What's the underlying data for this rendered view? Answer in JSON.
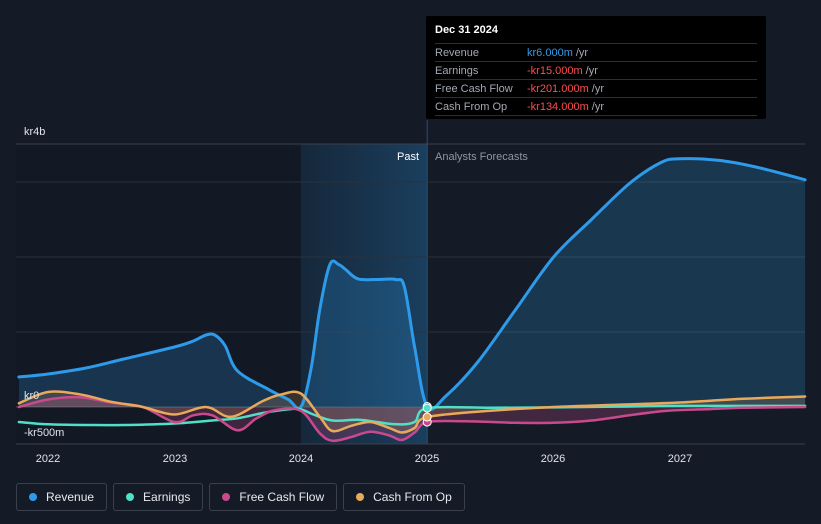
{
  "tooltip": {
    "date": "Dec 31 2024",
    "rows": [
      {
        "name": "Revenue",
        "value": "kr6.000m",
        "unit": "/yr",
        "color": "#2e9bea"
      },
      {
        "name": "Earnings",
        "value": "-kr15.000m",
        "unit": "/yr",
        "color": "#ff4d4d"
      },
      {
        "name": "Free Cash Flow",
        "value": "-kr201.000m",
        "unit": "/yr",
        "color": "#ff4d4d"
      },
      {
        "name": "Cash From Op",
        "value": "-kr134.000m",
        "unit": "/yr",
        "color": "#ff4d4d"
      }
    ]
  },
  "legend": {
    "items": [
      {
        "name": "Revenue",
        "color": "#2e9bea"
      },
      {
        "name": "Earnings",
        "color": "#4fe0c5"
      },
      {
        "name": "Free Cash Flow",
        "color": "#c94a8c"
      },
      {
        "name": "Cash From Op",
        "color": "#e9a95a"
      }
    ]
  },
  "chart_data": {
    "type": "line",
    "y_tick_labels": [
      "kr4b",
      "kr0",
      "-kr500m"
    ],
    "x_tick_labels": [
      "2022",
      "2023",
      "2024",
      "2025",
      "2026",
      "2027"
    ],
    "region_labels": {
      "past": "Past",
      "forecast": "Analysts Forecasts"
    },
    "x_range": [
      2021.77,
      2027.99
    ],
    "y_range": [
      -500,
      4000
    ],
    "past_end": 2025.0,
    "highlight_start": 2024.0,
    "grid": true,
    "legend_placement": "bottom",
    "series": [
      {
        "name": "Revenue",
        "color": "#2e9bea",
        "x": [
          2021.77,
          2022.0,
          2022.3,
          2022.6,
          2023.0,
          2023.15,
          2023.25,
          2023.32,
          2023.4,
          2023.5,
          2023.75,
          2023.9,
          2024.0,
          2024.08,
          2024.15,
          2024.23,
          2024.3,
          2024.35,
          2024.45,
          2024.6,
          2024.75,
          2024.82,
          2024.9,
          2025.0,
          2025.15,
          2025.4,
          2025.7,
          2026.0,
          2026.3,
          2026.6,
          2026.85,
          2027.0,
          2027.3,
          2027.6,
          2027.99
        ],
        "y": [
          400,
          440,
          520,
          640,
          800,
          880,
          960,
          960,
          820,
          480,
          230,
          100,
          0,
          500,
          1300,
          1900,
          1900,
          1840,
          1710,
          1700,
          1700,
          1600,
          800,
          6,
          150,
          600,
          1300,
          2000,
          2500,
          2980,
          3260,
          3310,
          3290,
          3200,
          3030
        ]
      },
      {
        "name": "Earnings",
        "color": "#4fe0c5",
        "x": [
          2021.77,
          2022.0,
          2022.3,
          2022.6,
          2023.0,
          2023.3,
          2023.5,
          2023.7,
          2023.9,
          2024.0,
          2024.1,
          2024.25,
          2024.45,
          2024.6,
          2024.75,
          2024.9,
          2025.0,
          2025.5,
          2026.0,
          2026.5,
          2027.0,
          2027.99
        ],
        "y": [
          -200,
          -230,
          -240,
          -240,
          -220,
          -180,
          -150,
          -80,
          -30,
          -30,
          -100,
          -180,
          -170,
          -200,
          -230,
          -200,
          -15,
          -10,
          -5,
          5,
          15,
          15
        ]
      },
      {
        "name": "Free Cash Flow",
        "color": "#c94a8c",
        "x": [
          2021.77,
          2022.0,
          2022.25,
          2022.5,
          2022.75,
          2023.0,
          2023.15,
          2023.3,
          2023.5,
          2023.65,
          2023.8,
          2024.0,
          2024.15,
          2024.25,
          2024.4,
          2024.55,
          2024.7,
          2024.8,
          2024.9,
          2025.0,
          2025.3,
          2025.7,
          2026.0,
          2026.3,
          2026.6,
          2026.9,
          2027.2,
          2027.5,
          2027.99
        ],
        "y": [
          0,
          100,
          130,
          60,
          0,
          -200,
          -110,
          -110,
          -310,
          -150,
          -40,
          -50,
          -350,
          -450,
          -400,
          -330,
          -380,
          -440,
          -340,
          -201,
          -190,
          -210,
          -210,
          -180,
          -110,
          -50,
          -30,
          -10,
          0
        ]
      },
      {
        "name": "Cash From Op",
        "color": "#e9a95a",
        "x": [
          2021.77,
          2022.0,
          2022.25,
          2022.5,
          2022.75,
          2023.0,
          2023.25,
          2023.45,
          2023.7,
          2023.85,
          2024.0,
          2024.15,
          2024.25,
          2024.4,
          2024.55,
          2024.7,
          2024.8,
          2024.9,
          2025.0,
          2025.5,
          2026.0,
          2026.5,
          2027.0,
          2027.5,
          2027.99
        ],
        "y": [
          50,
          200,
          170,
          70,
          0,
          -100,
          0,
          -130,
          80,
          170,
          180,
          -130,
          -320,
          -250,
          -200,
          -280,
          -340,
          -280,
          -134,
          -50,
          0,
          30,
          60,
          110,
          140
        ]
      }
    ]
  }
}
